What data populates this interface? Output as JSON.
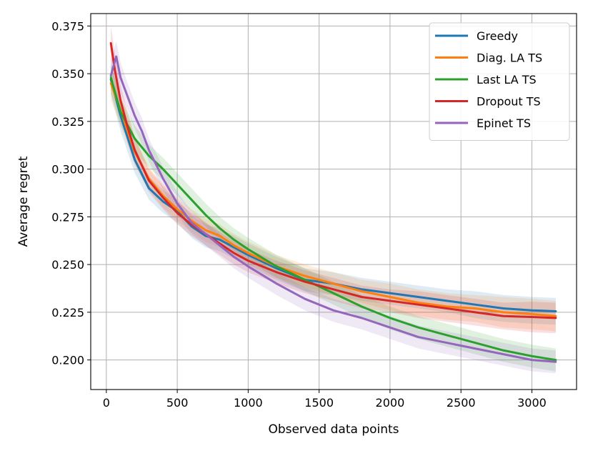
{
  "chart_data": {
    "type": "line",
    "title": "",
    "xlabel": "Observed data points",
    "ylabel": "Average regret",
    "xlim": [
      -110,
      3315
    ],
    "ylim": [
      0.1845,
      0.3815
    ],
    "xticks": [
      0,
      500,
      1000,
      1500,
      2000,
      2500,
      3000
    ],
    "xtick_labels": [
      "0",
      "500",
      "1000",
      "1500",
      "2000",
      "2500",
      "3000"
    ],
    "yticks": [
      0.2,
      0.225,
      0.25,
      0.275,
      0.3,
      0.325,
      0.35,
      0.375
    ],
    "ytick_labels": [
      "0.200",
      "0.225",
      "0.250",
      "0.275",
      "0.300",
      "0.325",
      "0.350",
      "0.375"
    ],
    "grid": true,
    "legend_position": "top-right",
    "series": [
      {
        "name": "Greedy",
        "color": "#1f77b4",
        "x": [
          32,
          100,
          200,
          300,
          400,
          500,
          600,
          700,
          800,
          900,
          1000,
          1200,
          1400,
          1600,
          1800,
          2000,
          2200,
          2400,
          2600,
          2800,
          3000,
          3168
        ],
        "y": [
          0.347,
          0.328,
          0.305,
          0.29,
          0.283,
          0.278,
          0.27,
          0.265,
          0.263,
          0.259,
          0.255,
          0.248,
          0.242,
          0.24,
          0.237,
          0.235,
          0.233,
          0.231,
          0.229,
          0.227,
          0.226,
          0.2255
        ],
        "band": [
          0.008,
          0.008,
          0.007,
          0.006,
          0.006,
          0.006,
          0.006,
          0.006,
          0.006,
          0.006,
          0.006,
          0.006,
          0.006,
          0.006,
          0.006,
          0.006,
          0.006,
          0.006,
          0.007,
          0.007,
          0.007,
          0.007
        ]
      },
      {
        "name": "Diag. LA TS",
        "color": "#ff7f0e",
        "x": [
          32,
          100,
          200,
          300,
          400,
          500,
          600,
          700,
          800,
          900,
          1000,
          1200,
          1400,
          1600,
          1800,
          2000,
          2200,
          2400,
          2600,
          2800,
          3000,
          3168
        ],
        "y": [
          0.345,
          0.331,
          0.309,
          0.295,
          0.286,
          0.279,
          0.273,
          0.268,
          0.265,
          0.26,
          0.256,
          0.249,
          0.244,
          0.24,
          0.236,
          0.233,
          0.23,
          0.228,
          0.227,
          0.225,
          0.224,
          0.223
        ],
        "band": [
          0.009,
          0.008,
          0.007,
          0.006,
          0.006,
          0.006,
          0.006,
          0.006,
          0.006,
          0.006,
          0.006,
          0.006,
          0.006,
          0.006,
          0.006,
          0.007,
          0.007,
          0.007,
          0.007,
          0.008,
          0.008,
          0.008
        ]
      },
      {
        "name": "Last LA TS",
        "color": "#2ca02c",
        "x": [
          32,
          100,
          200,
          300,
          400,
          500,
          600,
          700,
          800,
          900,
          1000,
          1200,
          1400,
          1600,
          1800,
          2000,
          2200,
          2400,
          2600,
          2800,
          3000,
          3168
        ],
        "y": [
          0.348,
          0.33,
          0.316,
          0.307,
          0.3,
          0.292,
          0.284,
          0.276,
          0.269,
          0.263,
          0.258,
          0.249,
          0.242,
          0.235,
          0.228,
          0.222,
          0.217,
          0.213,
          0.209,
          0.205,
          0.202,
          0.2
        ],
        "band": [
          0.008,
          0.007,
          0.007,
          0.006,
          0.006,
          0.006,
          0.006,
          0.006,
          0.006,
          0.006,
          0.006,
          0.006,
          0.006,
          0.006,
          0.006,
          0.006,
          0.006,
          0.006,
          0.006,
          0.006,
          0.006,
          0.006
        ]
      },
      {
        "name": "Dropout TS",
        "color": "#d62728",
        "x": [
          32,
          60,
          100,
          150,
          200,
          300,
          400,
          500,
          600,
          700,
          800,
          900,
          1000,
          1200,
          1400,
          1600,
          1800,
          2000,
          2200,
          2400,
          2600,
          2800,
          3000,
          3168
        ],
        "y": [
          0.366,
          0.352,
          0.336,
          0.322,
          0.31,
          0.294,
          0.285,
          0.277,
          0.271,
          0.266,
          0.261,
          0.256,
          0.252,
          0.246,
          0.241,
          0.237,
          0.233,
          0.231,
          0.229,
          0.227,
          0.225,
          0.223,
          0.2225,
          0.222
        ],
        "band": [
          0.009,
          0.009,
          0.008,
          0.008,
          0.007,
          0.006,
          0.006,
          0.006,
          0.006,
          0.006,
          0.006,
          0.006,
          0.006,
          0.006,
          0.006,
          0.006,
          0.006,
          0.006,
          0.007,
          0.007,
          0.007,
          0.007,
          0.008,
          0.008
        ]
      },
      {
        "name": "Epinet TS",
        "color": "#9467bd",
        "x": [
          32,
          70,
          100,
          150,
          200,
          250,
          300,
          400,
          500,
          600,
          700,
          800,
          900,
          1000,
          1200,
          1400,
          1600,
          1800,
          2000,
          2200,
          2400,
          2600,
          2800,
          3000,
          3168
        ],
        "y": [
          0.349,
          0.359,
          0.348,
          0.338,
          0.328,
          0.32,
          0.31,
          0.295,
          0.282,
          0.272,
          0.266,
          0.26,
          0.254,
          0.249,
          0.24,
          0.232,
          0.226,
          0.222,
          0.217,
          0.212,
          0.209,
          0.206,
          0.203,
          0.2,
          0.199
        ],
        "band": [
          0.008,
          0.008,
          0.008,
          0.007,
          0.007,
          0.007,
          0.006,
          0.006,
          0.006,
          0.006,
          0.006,
          0.006,
          0.006,
          0.006,
          0.006,
          0.006,
          0.006,
          0.006,
          0.006,
          0.006,
          0.006,
          0.006,
          0.006,
          0.006,
          0.006
        ]
      }
    ]
  }
}
